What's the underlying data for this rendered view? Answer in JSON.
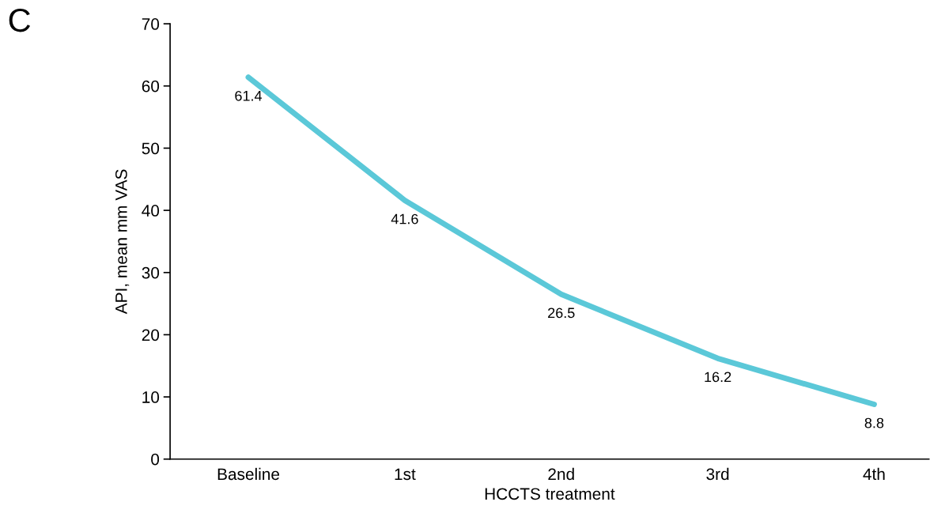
{
  "chart_data": {
    "type": "line",
    "xlabel": "HCCTS treatment",
    "ylabel": "API, mean mm VAS",
    "annotations": [
      "C"
    ],
    "categories": [
      "Baseline",
      "1st",
      "2nd",
      "3rd",
      "4th"
    ],
    "series": [
      {
        "color": "#5bc8d8",
        "values": [
          61.4,
          41.6,
          26.5,
          16.2,
          8.8
        ]
      }
    ],
    "ylim": [
      0,
      70
    ],
    "yticks": [
      0,
      10,
      20,
      30,
      40,
      50,
      60,
      70
    ],
    "grid": false,
    "legend": false,
    "marker": "none",
    "line_style": "solid",
    "data_labels": true
  }
}
